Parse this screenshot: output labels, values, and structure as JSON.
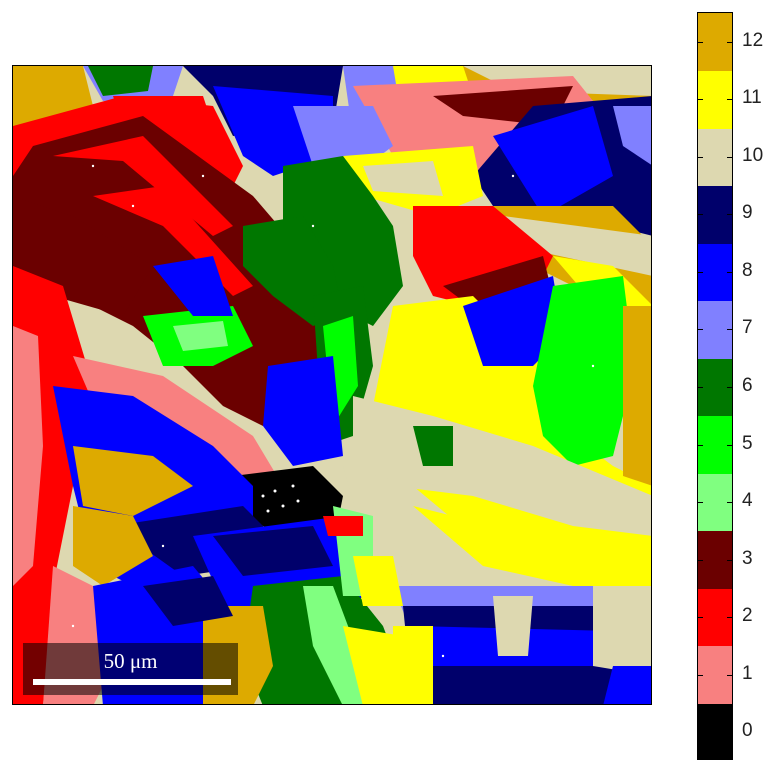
{
  "image": {
    "description_color_map": "grain orientation map",
    "scalebar": {
      "label": "50 μm"
    }
  },
  "colorbar": {
    "levels": [
      {
        "value": "0",
        "color": "#000000"
      },
      {
        "value": "1",
        "color": "#f88080"
      },
      {
        "value": "2",
        "color": "#ff0000"
      },
      {
        "value": "3",
        "color": "#6b0000"
      },
      {
        "value": "4",
        "color": "#80ff80"
      },
      {
        "value": "5",
        "color": "#00ff00"
      },
      {
        "value": "6",
        "color": "#007700"
      },
      {
        "value": "7",
        "color": "#8080ff"
      },
      {
        "value": "8",
        "color": "#0000ff"
      },
      {
        "value": "9",
        "color": "#00006b"
      },
      {
        "value": "10",
        "color": "#ddd8b0"
      },
      {
        "value": "11",
        "color": "#ffff00"
      },
      {
        "value": "12",
        "color": "#ddaa00"
      }
    ]
  }
}
